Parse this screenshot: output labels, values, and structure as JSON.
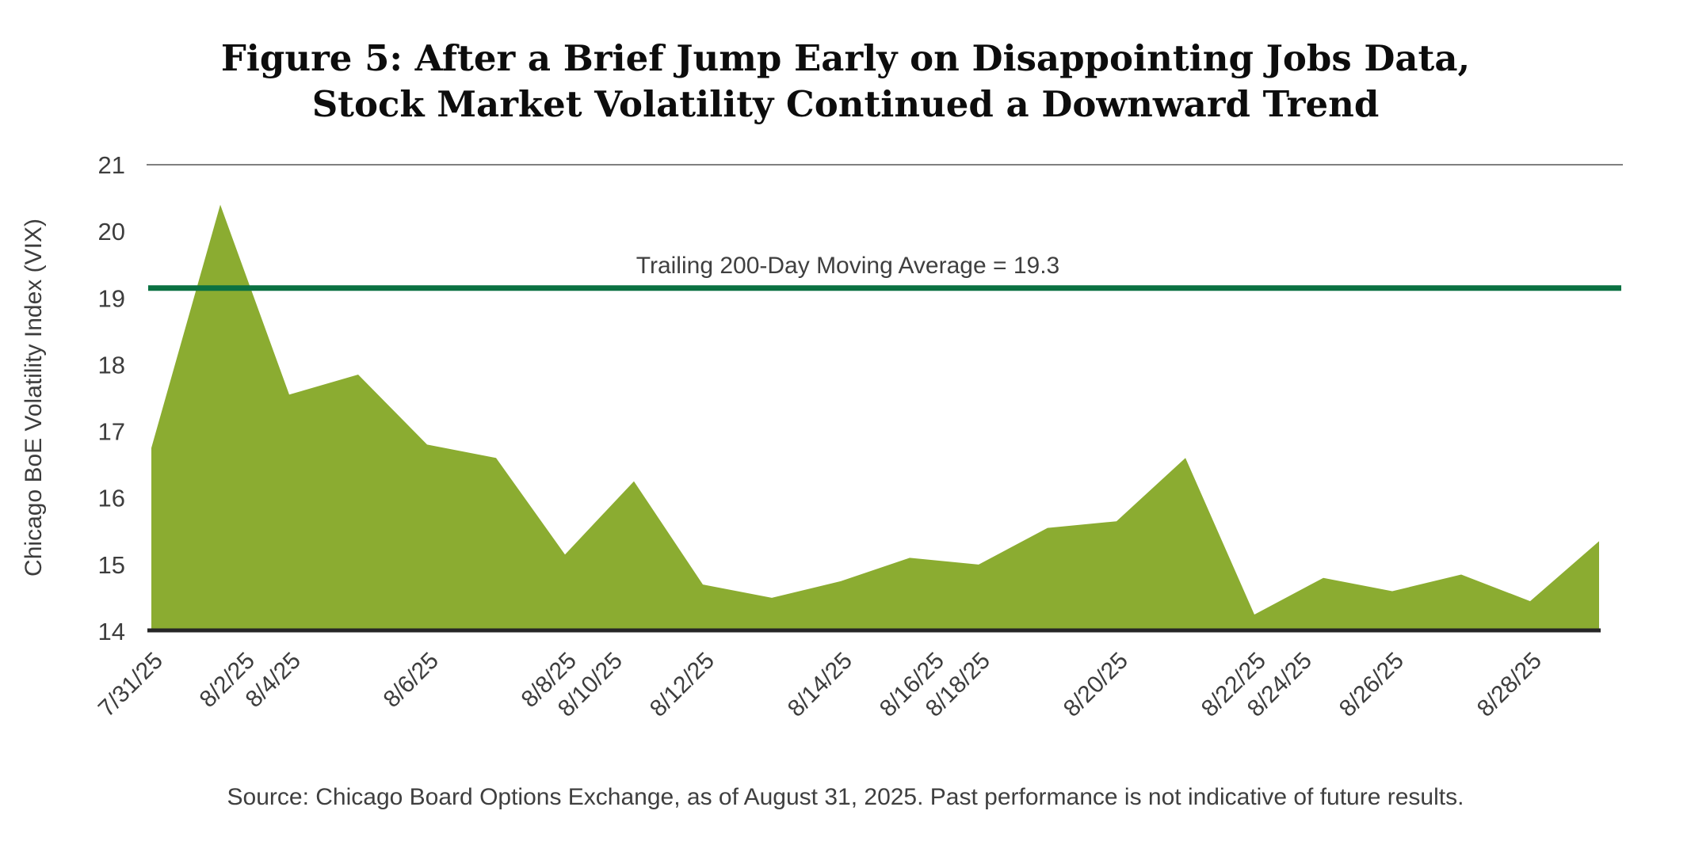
{
  "title": {
    "line1": "Figure 5: After a Brief Jump Early on Disappointing Jobs Data,",
    "line2": "Stock Market Volatility Continued a Downward Trend"
  },
  "y_axis": {
    "label": "Chicago BoE Volatility Index (VIX)"
  },
  "annotation": {
    "moving_average_label": "Trailing 200-Day Moving Average = 19.3"
  },
  "source": "Source: Chicago Board Options Exchange, as of August 31, 2025. Past performance is not indicative of future results.",
  "colors": {
    "area_green": "#8BAC31",
    "ma_line_green": "#0A7142",
    "gridline_gray": "#7f7f7f",
    "axis_dark": "#262626",
    "text_gray": "#3d3d3d",
    "title_black": "#0d0d0d"
  },
  "chart_data": {
    "type": "area",
    "title": "Figure 5: After a Brief Jump Early on Disappointing Jobs Data, Stock Market Volatility Continued a Downward Trend",
    "ylabel": "Chicago BoE Volatility Index (VIX)",
    "ylim": [
      14,
      21
    ],
    "y_ticks": [
      21,
      20,
      19,
      18,
      17,
      16,
      15,
      14
    ],
    "grid": "single top gridline at y=21; solid bottom axis at y=14",
    "legend_position": "none (inline annotation above reference line)",
    "x": [
      "7/31/25",
      "8/1/25",
      "8/4/25",
      "8/5/25",
      "8/6/25",
      "8/7/25",
      "8/8/25",
      "8/11/25",
      "8/12/25",
      "8/13/25",
      "8/14/25",
      "8/15/25",
      "8/18/25",
      "8/19/25",
      "8/20/25",
      "8/21/25",
      "8/22/25",
      "8/25/25",
      "8/26/25",
      "8/27/25",
      "8/28/25",
      "8/29/25"
    ],
    "values": [
      16.75,
      20.4,
      17.55,
      17.85,
      16.8,
      16.6,
      15.15,
      16.25,
      14.7,
      14.5,
      14.75,
      15.1,
      15.0,
      15.55,
      15.65,
      16.6,
      14.25,
      14.8,
      14.6,
      14.85,
      14.45,
      15.35
    ],
    "x_tick_labels": [
      {
        "label": "7/31/25",
        "t": 0
      },
      {
        "label": "8/2/25",
        "t": 1.333
      },
      {
        "label": "8/4/25",
        "t": 2
      },
      {
        "label": "8/6/25",
        "t": 4
      },
      {
        "label": "8/8/25",
        "t": 6
      },
      {
        "label": "8/10/25",
        "t": 6.667
      },
      {
        "label": "8/12/25",
        "t": 8
      },
      {
        "label": "8/14/25",
        "t": 10
      },
      {
        "label": "8/16/25",
        "t": 11.333
      },
      {
        "label": "8/18/25",
        "t": 12
      },
      {
        "label": "8/20/25",
        "t": 14
      },
      {
        "label": "8/22/25",
        "t": 16
      },
      {
        "label": "8/24/25",
        "t": 16.667
      },
      {
        "label": "8/26/25",
        "t": 18
      },
      {
        "label": "8/28/25",
        "t": 20
      }
    ],
    "reference_line": {
      "label": "Trailing 200-Day Moving Average = 19.3",
      "stated_value": 19.3,
      "drawn_at": 19.15
    }
  }
}
